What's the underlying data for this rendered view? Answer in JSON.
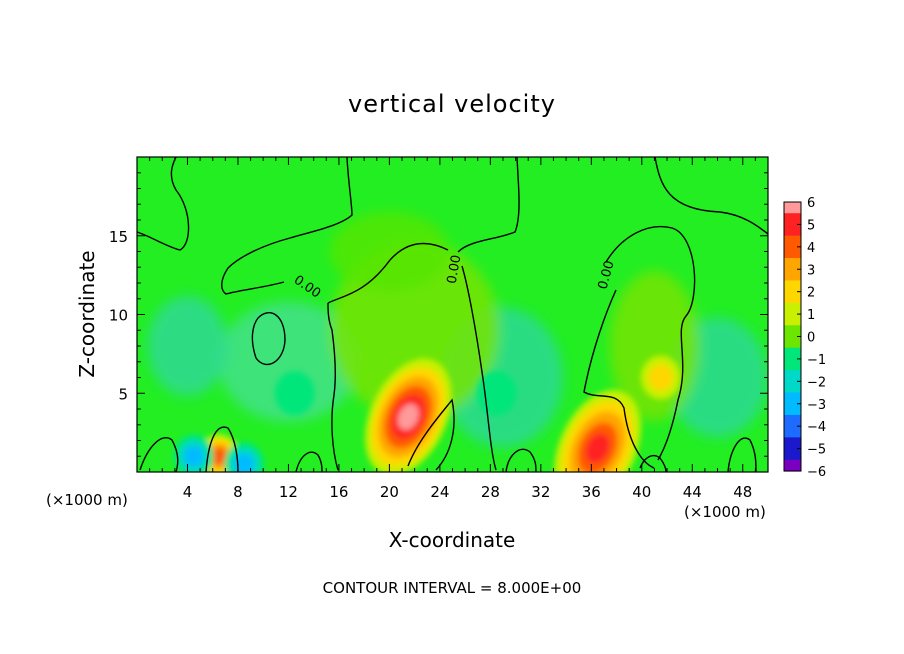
{
  "chart_data": {
    "type": "heatmap",
    "title": "vertical velocity",
    "xlabel": "X-coordinate",
    "ylabel": "Z-coordinate",
    "x_unit": "(×1000 m)",
    "x_unit_right": "(×1000 m)",
    "xlim": [
      0,
      50
    ],
    "ylim": [
      0,
      20
    ],
    "x_ticks": [
      4,
      8,
      12,
      16,
      20,
      24,
      28,
      32,
      36,
      40,
      44,
      48
    ],
    "y_ticks": [
      5,
      10,
      15
    ],
    "contour_label": "0.00",
    "contour_interval_text": "CONTOUR INTERVAL = 8.000E+00",
    "colorbar": {
      "ticks": [
        6,
        5,
        4,
        3,
        2,
        1,
        0,
        -1,
        -2,
        -3,
        -4,
        -5,
        -6
      ],
      "labels": [
        "6",
        "5",
        "4",
        "3",
        "2",
        "1",
        "0",
        "−1",
        "−2",
        "−3",
        "−4",
        "−5",
        "−6"
      ],
      "colors": [
        "#ff9a9a",
        "#ff2222",
        "#ff5a00",
        "#ffa500",
        "#ffd700",
        "#c8f000",
        "#6ce600",
        "#00e67a",
        "#00d8c8",
        "#00bbff",
        "#1e6bff",
        "#1a1acc",
        "#7a00c0"
      ]
    },
    "field_features": [
      {
        "kind": "updraft",
        "x": 21.5,
        "z": 3.5,
        "peak": 6
      },
      {
        "kind": "updraft",
        "x": 36.5,
        "z": 1.5,
        "peak": 5
      },
      {
        "kind": "updraft",
        "x": 6.5,
        "z": 1.0,
        "peak": 4
      },
      {
        "kind": "updraft",
        "x": 41.5,
        "z": 6.0,
        "peak": 2
      },
      {
        "kind": "downdraft",
        "x": 4.5,
        "z": 1.0,
        "peak": -3
      },
      {
        "kind": "downdraft",
        "x": 8.5,
        "z": 0.5,
        "peak": -3
      },
      {
        "kind": "downdraft",
        "x": 28.5,
        "z": 5.0,
        "peak": -1.5
      },
      {
        "kind": "downdraft",
        "x": 12.5,
        "z": 5.0,
        "peak": -1.5
      }
    ]
  }
}
